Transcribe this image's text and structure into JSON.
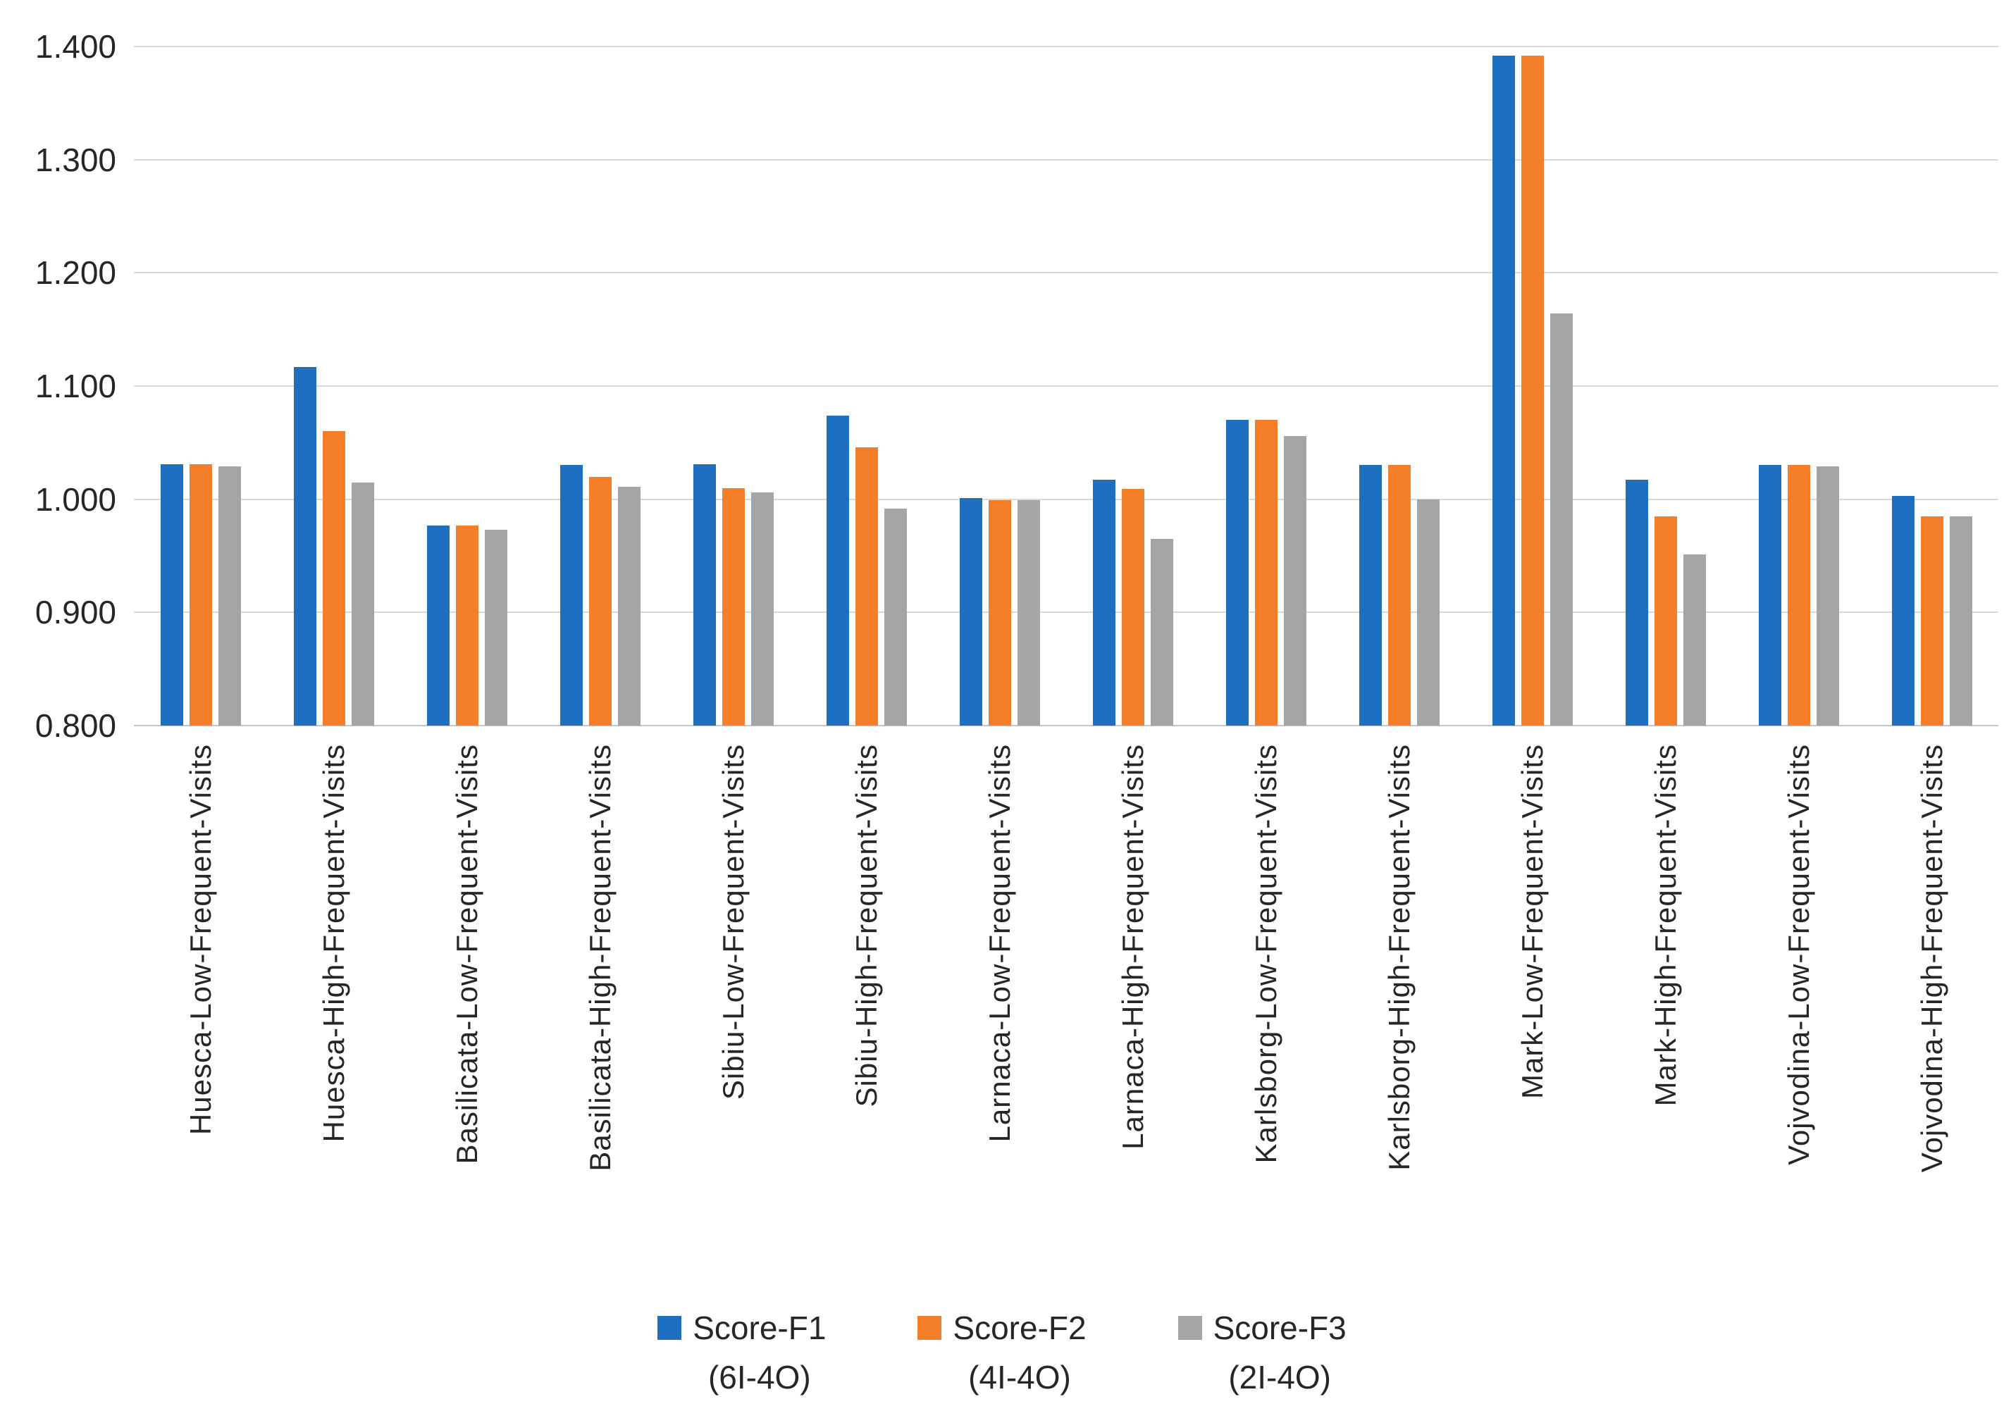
{
  "chart_data": {
    "type": "bar",
    "title": "",
    "xlabel": "",
    "ylabel": "",
    "categories": [
      "Huesca-Low-Frequent-Visits",
      "Huesca-High-Frequent-Visits",
      "Basilicata-Low-Frequent-Visits",
      "Basilicata-High-Frequent-Visits",
      "Sibiu-Low-Frequent-Visits",
      "Sibiu-High-Frequent-Visits",
      "Larnaca-Low-Frequent-Visits",
      "Larnaca-High-Frequent-Visits",
      "Karlsborg-Low-Frequent-Visits",
      "Karlsborg-High-Frequent-Visits",
      "Mark-Low-Frequent-Visits",
      "Mark-High-Frequent-Visits",
      "Vojvodina-Low-Frequent-Visits",
      "Vojvodina-High-Frequent-Visits"
    ],
    "series": [
      {
        "name": "Score-F1",
        "sub": "(6I-4O)",
        "color": "#1e6fc0",
        "values": [
          1.031,
          1.117,
          0.977,
          1.03,
          1.031,
          1.074,
          1.001,
          1.017,
          1.07,
          1.03,
          1.392,
          1.017,
          1.03,
          1.003
        ]
      },
      {
        "name": "Score-F2",
        "sub": "(4I-4O)",
        "color": "#f57e2b",
        "values": [
          1.031,
          1.06,
          0.977,
          1.02,
          1.01,
          1.046,
          0.999,
          1.009,
          1.07,
          1.03,
          1.392,
          0.985,
          1.03,
          0.985
        ]
      },
      {
        "name": "Score-F3",
        "sub": "(2I-4O)",
        "color": "#a5a5a5",
        "values": [
          1.029,
          1.015,
          0.973,
          1.011,
          1.006,
          0.992,
          0.999,
          0.965,
          1.056,
          1.0,
          1.164,
          0.951,
          1.029,
          0.985
        ]
      }
    ],
    "ylim": [
      0.8,
      1.4
    ],
    "ytick_step": 0.1,
    "yticks": [
      "1.400",
      "1.300",
      "1.200",
      "1.100",
      "1.000",
      "0.900",
      "0.800"
    ],
    "grid": true,
    "legend_position": "bottom"
  },
  "colors": {
    "gridline": "#d9d9d9",
    "axis_line": "#c6c6c6",
    "text": "#262626",
    "background": "#ffffff"
  }
}
